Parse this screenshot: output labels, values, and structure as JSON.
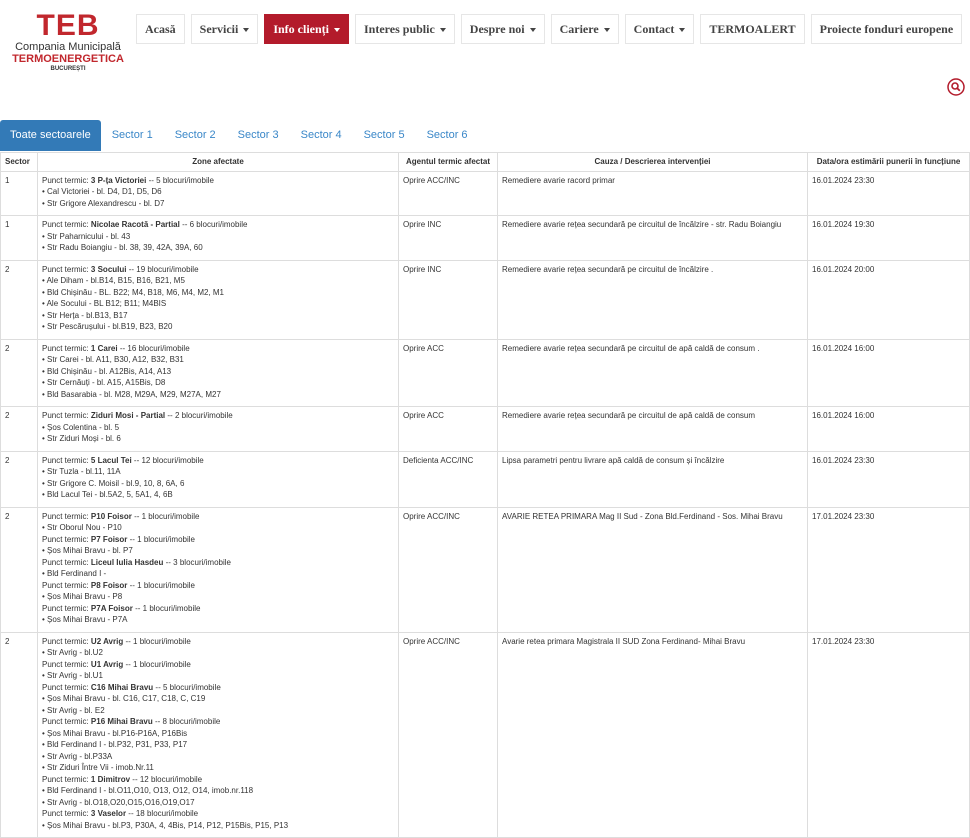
{
  "logo": {
    "mark": "TEB",
    "line1": "Compania Municipală",
    "line2": "TERMOENERGETICA",
    "line3": "BUCUREȘTI"
  },
  "nav": [
    {
      "label": "Acasă",
      "dropdown": false,
      "active": false
    },
    {
      "label": "Servicii",
      "dropdown": true,
      "active": false
    },
    {
      "label": "Info clienți",
      "dropdown": true,
      "active": true
    },
    {
      "label": "Interes public",
      "dropdown": true,
      "active": false
    },
    {
      "label": "Despre noi",
      "dropdown": true,
      "active": false
    },
    {
      "label": "Cariere",
      "dropdown": true,
      "active": false
    },
    {
      "label": "Contact",
      "dropdown": true,
      "active": false
    },
    {
      "label": "TERMOALERT",
      "dropdown": false,
      "active": false
    },
    {
      "label": "Proiecte fonduri europene",
      "dropdown": false,
      "active": false
    }
  ],
  "tabs": [
    "Toate sectoarele",
    "Sector 1",
    "Sector 2",
    "Sector 3",
    "Sector 4",
    "Sector 5",
    "Sector 6"
  ],
  "table": {
    "headers": [
      "Sector",
      "Zone afectate",
      "Agentul termic afectat",
      "Cauza / Descrierea intervenției",
      "Data/ora estimării punerii în funcțiune"
    ],
    "rows": [
      {
        "sector": "1",
        "zones": [
          {
            "punct": "Punct termic:",
            "name": "3 P-ța Victoriei",
            "count": "-- 5 blocuri/imobile"
          },
          {
            "street": "Cal Victoriei - bl. D4, D1, D5, D6"
          },
          {
            "street": "Str Grigore Alexandrescu - bl. D7"
          }
        ],
        "agent": "Oprire ACC/INC",
        "cause": "Remediere avarie racord primar",
        "date": "16.01.2024 23:30"
      },
      {
        "sector": "1",
        "zones": [
          {
            "punct": "Punct termic:",
            "name": "Nicolae Racotă - Partial",
            "count": "-- 6 blocuri/imobile"
          },
          {
            "street": "Str Paharnicului - bl. 43"
          },
          {
            "street": "Str Radu Boiangiu - bl. 38, 39, 42A, 39A, 60"
          }
        ],
        "agent": "Oprire INC",
        "cause": "Remediere avarie rețea secundară pe circuitul de încălzire - str. Radu Boiangiu",
        "date": "16.01.2024 19:30"
      },
      {
        "sector": "2",
        "zones": [
          {
            "punct": "Punct termic:",
            "name": "3 Socului",
            "count": "-- 19 blocuri/imobile"
          },
          {
            "street": "Ale Diham - bl.B14, B15, B16, B21, M5"
          },
          {
            "street": "Bld Chișinău - BL. B22; M4, B18, M6, M4, M2, M1"
          },
          {
            "street": "Ale Socului - BL B12; B11; M4BIS"
          },
          {
            "street": "Str Herța - bl.B13, B17"
          },
          {
            "street": "Str Pescărușului - bl.B19, B23, B20"
          }
        ],
        "agent": "Oprire INC",
        "cause": "Remediere avarie rețea secundară pe circuitul de încălzire .",
        "date": "16.01.2024 20:00"
      },
      {
        "sector": "2",
        "zones": [
          {
            "punct": "Punct termic:",
            "name": "1 Carei",
            "count": "-- 16 blocuri/imobile"
          },
          {
            "street": "Str Carei - bl. A11, B30, A12, B32, B31"
          },
          {
            "street": "Bld Chișinău - bl. A12Bis, A14, A13"
          },
          {
            "street": "Str Cernăuți - bl. A15, A15Bis, D8"
          },
          {
            "street": "Bld Basarabia - bl. M28, M29A, M29, M27A, M27"
          }
        ],
        "agent": "Oprire ACC",
        "cause": "Remediere avarie rețea secundară pe circuitul de apă caldă de consum .",
        "date": "16.01.2024 16:00"
      },
      {
        "sector": "2",
        "zones": [
          {
            "punct": "Punct termic:",
            "name": "Ziduri Mosi - Partial",
            "count": "-- 2 blocuri/imobile"
          },
          {
            "street": "Șos Colentina - bl. 5"
          },
          {
            "street": "Str Ziduri Moși - bl. 6"
          }
        ],
        "agent": "Oprire ACC",
        "cause": "Remediere avarie rețea secundară pe circuitul de apă caldă de consum",
        "date": "16.01.2024 16:00"
      },
      {
        "sector": "2",
        "zones": [
          {
            "punct": "Punct termic:",
            "name": "5 Lacul Tei",
            "count": "-- 12 blocuri/imobile"
          },
          {
            "street": "Str Tuzla - bl.11, 11A"
          },
          {
            "street": "Str Grigore C. Moisil - bl.9, 10, 8, 6A, 6"
          },
          {
            "street": "Bld Lacul Tei - bl.5A2, 5, 5A1, 4, 6B"
          }
        ],
        "agent": "Deficienta ACC/INC",
        "cause": "Lipsa parametri pentru livrare apă caldă de consum și încălzire",
        "date": "16.01.2024 23:30"
      },
      {
        "sector": "2",
        "zones": [
          {
            "punct": "Punct termic:",
            "name": "P10 Foisor",
            "count": "-- 1 blocuri/imobile"
          },
          {
            "street": "Str Oborul Nou - P10"
          },
          {
            "punct": "Punct termic:",
            "name": "P7 Foisor",
            "count": "-- 1 blocuri/imobile"
          },
          {
            "street": "Șos Mihai Bravu - bl. P7"
          },
          {
            "punct": "Punct termic:",
            "name": "Liceul Iulia Hasdeu",
            "count": "-- 3 blocuri/imobile"
          },
          {
            "street": "Bld Ferdinand I -"
          },
          {
            "punct": "Punct termic:",
            "name": "P8 Foisor",
            "count": "-- 1 blocuri/imobile"
          },
          {
            "street": "Șos Mihai Bravu - P8"
          },
          {
            "punct": "Punct termic:",
            "name": "P7A Foisor",
            "count": "-- 1 blocuri/imobile"
          },
          {
            "street": "Șos Mihai Bravu - P7A"
          }
        ],
        "agent": "Oprire ACC/INC",
        "cause": "AVARIE RETEA PRIMARA Mag II Sud - Zona Bld.Ferdinand - Sos. Mihai Bravu",
        "date": "17.01.2024 23:30"
      },
      {
        "sector": "2",
        "zones": [
          {
            "punct": "Punct termic:",
            "name": "U2 Avrig",
            "count": "-- 1 blocuri/imobile"
          },
          {
            "street": "Str Avrig - bl.U2"
          },
          {
            "punct": "Punct termic:",
            "name": "U1 Avrig",
            "count": "-- 1 blocuri/imobile"
          },
          {
            "street": "Str Avrig - bl.U1"
          },
          {
            "punct": "Punct termic:",
            "name": "C16 Mihai Bravu",
            "count": "-- 5 blocuri/imobile"
          },
          {
            "street": "Șos Mihai Bravu - bl. C16, C17, C18, C, C19"
          },
          {
            "street": "Str Avrig - bl. E2"
          },
          {
            "punct": "Punct termic:",
            "name": "P16 Mihai Bravu",
            "count": "-- 8 blocuri/imobile"
          },
          {
            "street": "Șos Mihai Bravu - bl.P16-P16A, P16Bis"
          },
          {
            "street": "Bld Ferdinand I - bl.P32, P31, P33, P17"
          },
          {
            "street": "Str Avrig - bl.P33A"
          },
          {
            "street": "Str Ziduri Între Vii - imob.Nr.11"
          },
          {
            "punct": "Punct termic:",
            "name": "1 Dimitrov",
            "count": "-- 12 blocuri/imobile"
          },
          {
            "street": "Bld Ferdinand I - bl.O11,O10, O13, O12, O14, imob.nr.118"
          },
          {
            "street": "Str Avrig - bl.O18,O20,O15,O16,O19,O17"
          },
          {
            "punct": "Punct termic:",
            "name": "3 Vaselor",
            "count": "-- 18 blocuri/imobile"
          },
          {
            "street": "Șos Mihai Bravu - bl.P3, P30A, 4, 4Bis, P14, P12, P15Bis, P15, P13"
          }
        ],
        "agent": "Oprire ACC/INC",
        "cause": "Avarie retea primara Magistrala II SUD Zona Ferdinand- Mihai Bravu",
        "date": "17.01.2024 23:30"
      }
    ]
  }
}
